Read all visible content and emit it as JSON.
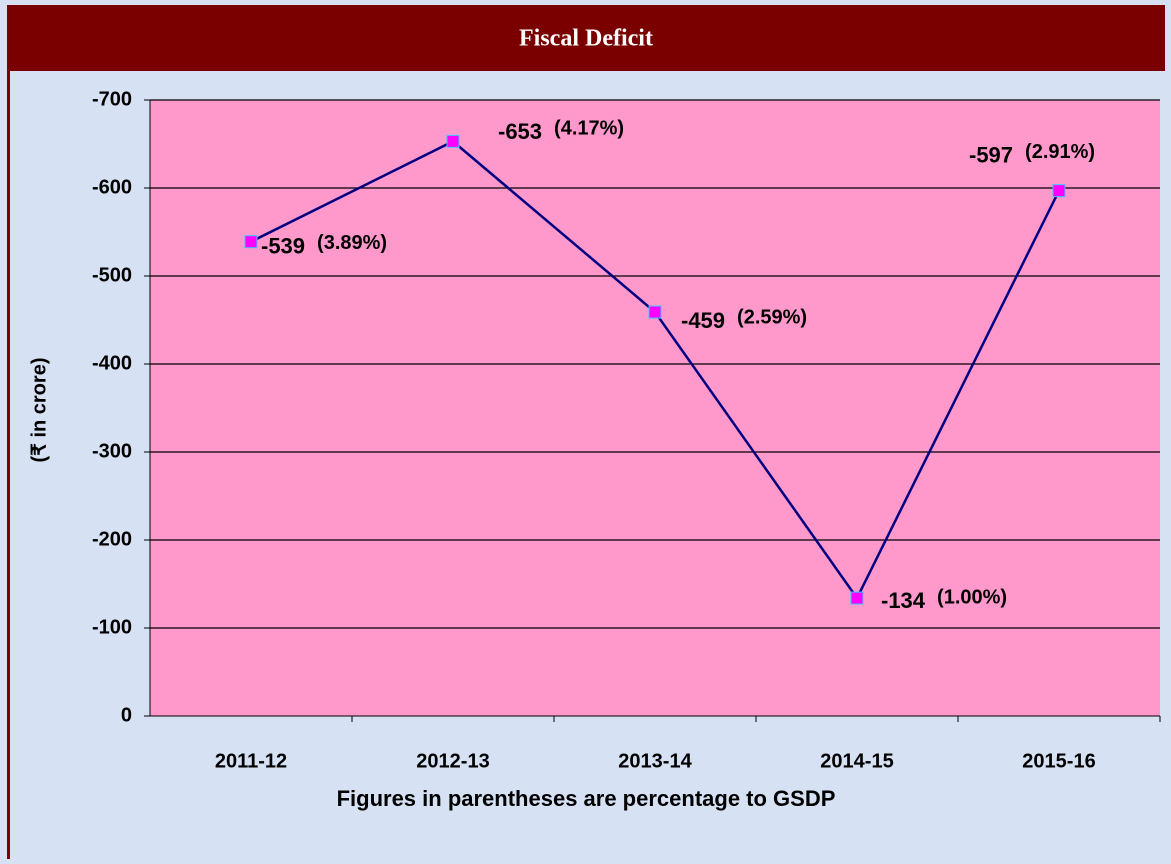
{
  "chart_data": {
    "type": "line",
    "title": "Fiscal Deficit",
    "y_label": "(₹ in crore)",
    "x_label": "Figures in parentheses are percentage to GSDP",
    "categories": [
      "2011-12",
      "2012-13",
      "2013-14",
      "2014-15",
      "2015-16"
    ],
    "series": [
      {
        "name": "Fiscal Deficit",
        "color": "#000080",
        "marker_color": "#ff00ff",
        "values": [
          -539,
          -653,
          -459,
          -134,
          -597
        ]
      }
    ],
    "gsdp_share": {
      "values": [
        3.89,
        4.17,
        2.59,
        1.0,
        2.91
      ],
      "value_labels": [
        "(3.89%)",
        "(4.17%)",
        "(2.59%)",
        "(1.00%)",
        "(2.91%)"
      ]
    },
    "ylim": [
      0,
      -700
    ],
    "yticks": [
      0,
      -100,
      -200,
      -300,
      -400,
      -500,
      -600,
      -700
    ],
    "grid": true
  }
}
